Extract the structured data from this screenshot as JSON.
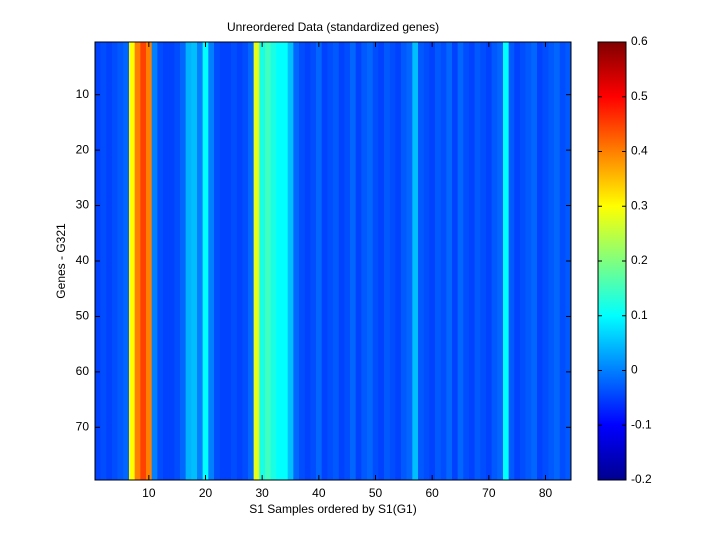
{
  "chart_data": {
    "type": "heatmap",
    "title": "Unreordered Data (standardized genes)",
    "x_label": "S1 Samples ordered by S1(G1)",
    "y_label": "Genes - G321",
    "xlim": [
      0.5,
      84.5
    ],
    "xticks": [
      10,
      20,
      30,
      40,
      50,
      60,
      70,
      80
    ],
    "ylim": [
      0.5,
      79.5
    ],
    "yticks": [
      10,
      20,
      30,
      40,
      50,
      60,
      70
    ],
    "y_reversed": true,
    "colormap": "jet",
    "clim": [
      -0.2,
      0.6
    ],
    "colorbar_ticks": [
      -0.2,
      -0.1,
      0,
      0.1,
      0.2,
      0.3,
      0.4,
      0.5,
      0.6
    ],
    "column_values": [
      -0.05,
      -0.04,
      -0.05,
      -0.04,
      -0.03,
      -0.02,
      0.3,
      0.4,
      0.45,
      0.4,
      0.0,
      -0.04,
      -0.05,
      -0.05,
      -0.04,
      -0.02,
      0.04,
      0.05,
      0.0,
      0.1,
      0.0,
      -0.04,
      -0.05,
      -0.05,
      -0.04,
      -0.05,
      -0.04,
      -0.02,
      0.28,
      0.12,
      0.15,
      0.12,
      0.1,
      0.1,
      0.05,
      -0.02,
      -0.04,
      -0.05,
      -0.04,
      -0.02,
      -0.05,
      -0.04,
      -0.03,
      -0.05,
      -0.04,
      -0.02,
      -0.05,
      -0.03,
      -0.02,
      -0.04,
      -0.05,
      -0.03,
      -0.04,
      -0.05,
      -0.03,
      -0.02,
      0.05,
      -0.03,
      -0.04,
      -0.05,
      -0.03,
      -0.04,
      -0.02,
      -0.05,
      -0.02,
      -0.04,
      -0.05,
      -0.03,
      -0.04,
      -0.05,
      -0.03,
      -0.02,
      0.1,
      -0.03,
      -0.05,
      -0.04,
      -0.03,
      -0.02,
      -0.05,
      -0.04,
      -0.03,
      -0.02,
      -0.04,
      -0.03
    ]
  }
}
